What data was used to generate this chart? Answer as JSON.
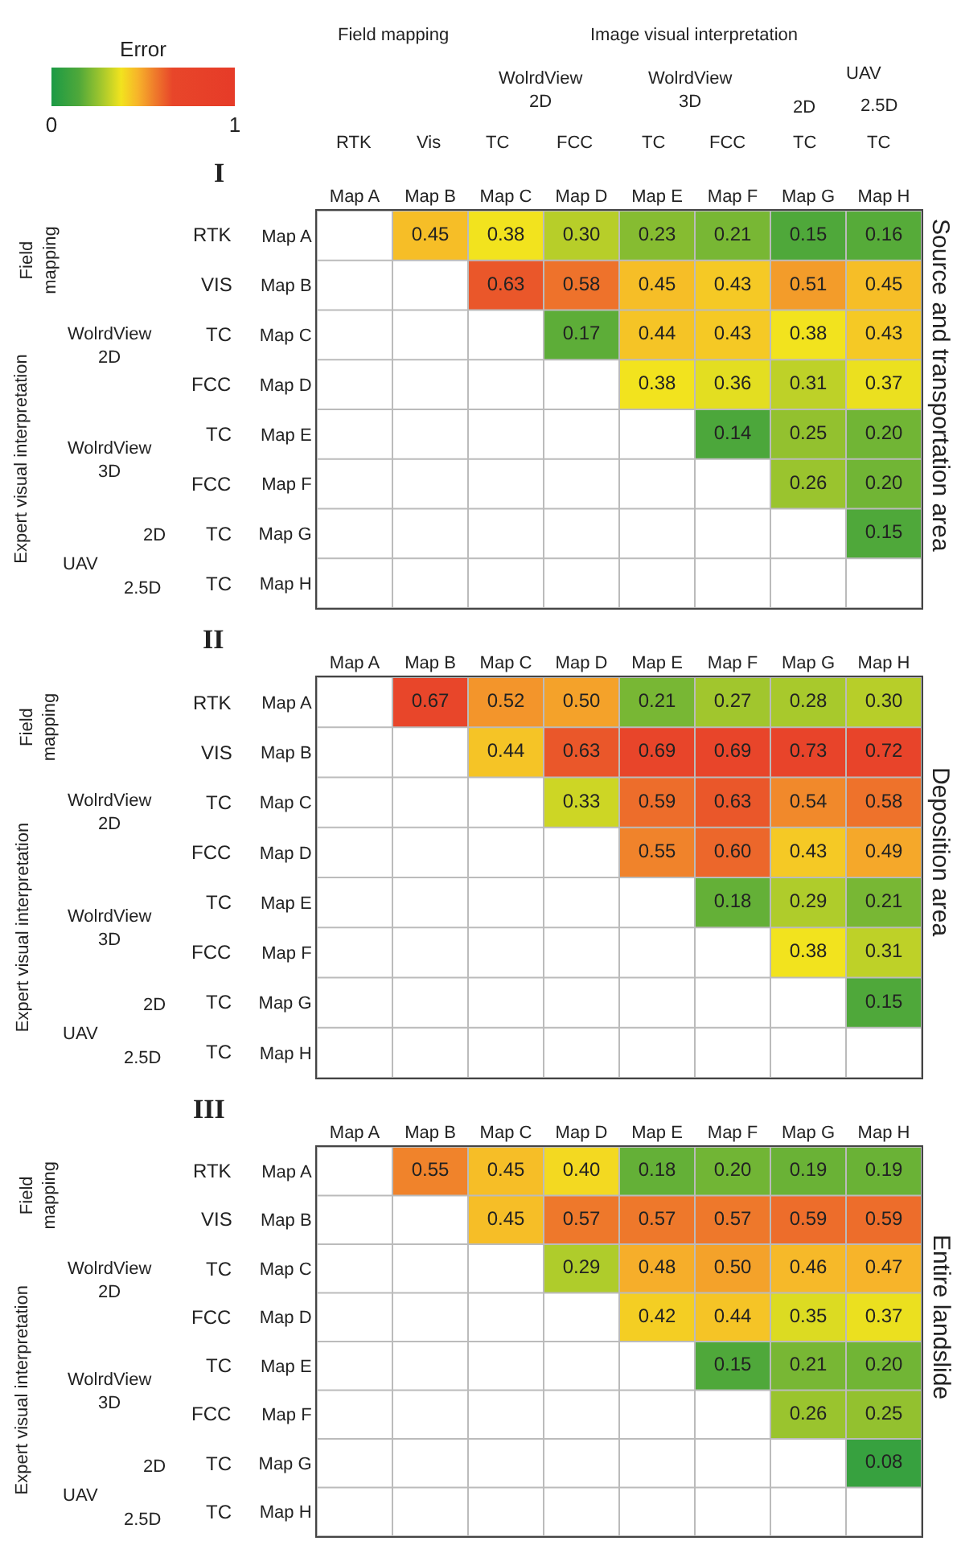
{
  "chart_data": [
    {
      "type": "heatmap",
      "title": "I",
      "y2label": "Source and transportation area",
      "clabel": "Error",
      "clim": [
        0,
        1
      ],
      "cticks": [
        0,
        1
      ],
      "grid": true,
      "categories": [
        "Map A",
        "Map B",
        "Map C",
        "Map D",
        "Map E",
        "Map F",
        "Map G",
        "Map H"
      ],
      "y_categories": [
        "Map A",
        "Map B",
        "Map C",
        "Map D",
        "Map E",
        "Map F",
        "Map G",
        "Map H"
      ],
      "y2_categories": [
        "RTK",
        "VIS",
        "TC",
        "FCC",
        "TC",
        "FCC",
        "TC",
        "TC"
      ],
      "annotations": [
        "Field mapping",
        "Image visual interpretation",
        "WolrdView\n2D",
        "WolrdView\n3D",
        "UAV",
        "2D",
        "2.5D",
        "RTK",
        "Vis",
        "TC",
        "FCC",
        "TC",
        "FCC",
        "TC",
        "TC",
        "Field\nmapping",
        "Expert visual interpretation",
        "WolrdView\n2D",
        "WolrdView\n3D",
        "UAV",
        "2D",
        "2.5D"
      ],
      "cells": [
        [
          null,
          0.45,
          0.38,
          0.3,
          0.23,
          0.21,
          0.15,
          0.16
        ],
        [
          null,
          null,
          0.63,
          0.58,
          0.45,
          0.43,
          0.51,
          0.45
        ],
        [
          null,
          null,
          null,
          0.17,
          0.44,
          0.43,
          0.38,
          0.43
        ],
        [
          null,
          null,
          null,
          null,
          0.38,
          0.36,
          0.31,
          0.37
        ],
        [
          null,
          null,
          null,
          null,
          null,
          0.14,
          0.25,
          0.2
        ],
        [
          null,
          null,
          null,
          null,
          null,
          null,
          0.26,
          0.2
        ],
        [
          null,
          null,
          null,
          null,
          null,
          null,
          null,
          0.15
        ],
        [
          null,
          null,
          null,
          null,
          null,
          null,
          null,
          null
        ]
      ],
      "cell_labels": [
        [
          null,
          "0.45",
          "0.38",
          "0.30",
          "0.23",
          "0.21",
          "0.15",
          "0.16"
        ],
        [
          null,
          null,
          "0.63",
          "0.58",
          "0.45",
          "0.43",
          "0.51",
          "0.45"
        ],
        [
          null,
          null,
          null,
          "0.17",
          "0.44",
          "0.43",
          "0.38",
          "0.43"
        ],
        [
          null,
          null,
          null,
          null,
          "0.38",
          "0.36",
          "0.31",
          "0.37"
        ],
        [
          null,
          null,
          null,
          null,
          null,
          "0.14",
          "0.25",
          "0.20"
        ],
        [
          null,
          null,
          null,
          null,
          null,
          null,
          "0.26",
          "0.20"
        ],
        [
          null,
          null,
          null,
          null,
          null,
          null,
          null,
          "0.15"
        ],
        [
          null,
          null,
          null,
          null,
          null,
          null,
          null,
          null
        ]
      ]
    },
    {
      "type": "heatmap",
      "title": "II",
      "y2label": "Deposition area",
      "grid": true,
      "categories": [
        "Map A",
        "Map B",
        "Map C",
        "Map D",
        "Map E",
        "Map F",
        "Map G",
        "Map H"
      ],
      "y_categories": [
        "Map A",
        "Map B",
        "Map C",
        "Map D",
        "Map E",
        "Map F",
        "Map G",
        "Map H"
      ],
      "y2_categories": [
        "RTK",
        "VIS",
        "TC",
        "FCC",
        "TC",
        "FCC",
        "TC",
        "TC"
      ],
      "annotations": [
        "Field\nmapping",
        "Expert visual interpretation",
        "WolrdView\n2D",
        "WolrdView\n3D",
        "UAV",
        "2D",
        "2.5D"
      ],
      "cells": [
        [
          null,
          0.67,
          0.52,
          0.5,
          0.21,
          0.27,
          0.28,
          0.3
        ],
        [
          null,
          null,
          0.44,
          0.63,
          0.69,
          0.69,
          0.73,
          0.72
        ],
        [
          null,
          null,
          null,
          0.33,
          0.59,
          0.63,
          0.54,
          0.58
        ],
        [
          null,
          null,
          null,
          null,
          0.55,
          0.6,
          0.43,
          0.49
        ],
        [
          null,
          null,
          null,
          null,
          null,
          0.18,
          0.29,
          0.21
        ],
        [
          null,
          null,
          null,
          null,
          null,
          null,
          0.38,
          0.31
        ],
        [
          null,
          null,
          null,
          null,
          null,
          null,
          null,
          0.15
        ],
        [
          null,
          null,
          null,
          null,
          null,
          null,
          null,
          null
        ]
      ],
      "cell_labels": [
        [
          null,
          "0.67",
          "0.52",
          "0.50",
          "0.21",
          "0.27",
          "0.28",
          "0.30"
        ],
        [
          null,
          null,
          "0.44",
          "0.63",
          "0.69",
          "0.69",
          "0.73",
          "0.72"
        ],
        [
          null,
          null,
          null,
          "0.33",
          "0.59",
          "0.63",
          "0.54",
          "0.58"
        ],
        [
          null,
          null,
          null,
          null,
          "0.55",
          "0.60",
          "0.43",
          "0.49"
        ],
        [
          null,
          null,
          null,
          null,
          null,
          "0.18",
          "0.29",
          "0.21"
        ],
        [
          null,
          null,
          null,
          null,
          null,
          null,
          "0.38",
          "0.31"
        ],
        [
          null,
          null,
          null,
          null,
          null,
          null,
          null,
          "0.15"
        ],
        [
          null,
          null,
          null,
          null,
          null,
          null,
          null,
          null
        ]
      ]
    },
    {
      "type": "heatmap",
      "title": "III",
      "y2label": "Entire landslide",
      "grid": true,
      "categories": [
        "Map A",
        "Map B",
        "Map C",
        "Map D",
        "Map E",
        "Map F",
        "Map G",
        "Map H"
      ],
      "y_categories": [
        "Map A",
        "Map B",
        "Map C",
        "Map D",
        "Map E",
        "Map F",
        "Map G",
        "Map H"
      ],
      "y2_categories": [
        "RTK",
        "VIS",
        "TC",
        "FCC",
        "TC",
        "FCC",
        "TC",
        "TC"
      ],
      "annotations": [
        "Field\nmapping",
        "Expert visual interpretation",
        "WolrdView\n2D",
        "WolrdView\n3D",
        "UAV",
        "2D",
        "2.5D"
      ],
      "cells": [
        [
          null,
          0.55,
          0.45,
          0.4,
          0.18,
          0.2,
          0.19,
          0.19
        ],
        [
          null,
          null,
          0.45,
          0.57,
          0.57,
          0.57,
          0.59,
          0.59
        ],
        [
          null,
          null,
          null,
          0.29,
          0.48,
          0.5,
          0.46,
          0.47
        ],
        [
          null,
          null,
          null,
          null,
          0.42,
          0.44,
          0.35,
          0.37
        ],
        [
          null,
          null,
          null,
          null,
          null,
          0.15,
          0.21,
          0.2
        ],
        [
          null,
          null,
          null,
          null,
          null,
          null,
          0.26,
          0.25
        ],
        [
          null,
          null,
          null,
          null,
          null,
          null,
          null,
          0.08
        ],
        [
          null,
          null,
          null,
          null,
          null,
          null,
          null,
          null
        ]
      ],
      "cell_labels": [
        [
          null,
          "0.55",
          "0.45",
          "0.40",
          "0.18",
          "0.20",
          "0.19",
          "0.19"
        ],
        [
          null,
          null,
          "0.45",
          "0.57",
          "0.57",
          "0.57",
          "0.59",
          "0.59"
        ],
        [
          null,
          null,
          null,
          "0.29",
          "0.48",
          "0.50",
          "0.46",
          "0.47"
        ],
        [
          null,
          null,
          null,
          null,
          "0.42",
          "0.44",
          "0.35",
          "0.37"
        ],
        [
          null,
          null,
          null,
          null,
          null,
          "0.15",
          "0.21",
          "0.20"
        ],
        [
          null,
          null,
          null,
          null,
          null,
          null,
          "0.26",
          "0.25"
        ],
        [
          null,
          null,
          null,
          null,
          null,
          null,
          null,
          "0.08"
        ],
        [
          null,
          null,
          null,
          null,
          null,
          null,
          null,
          null
        ]
      ]
    }
  ]
}
